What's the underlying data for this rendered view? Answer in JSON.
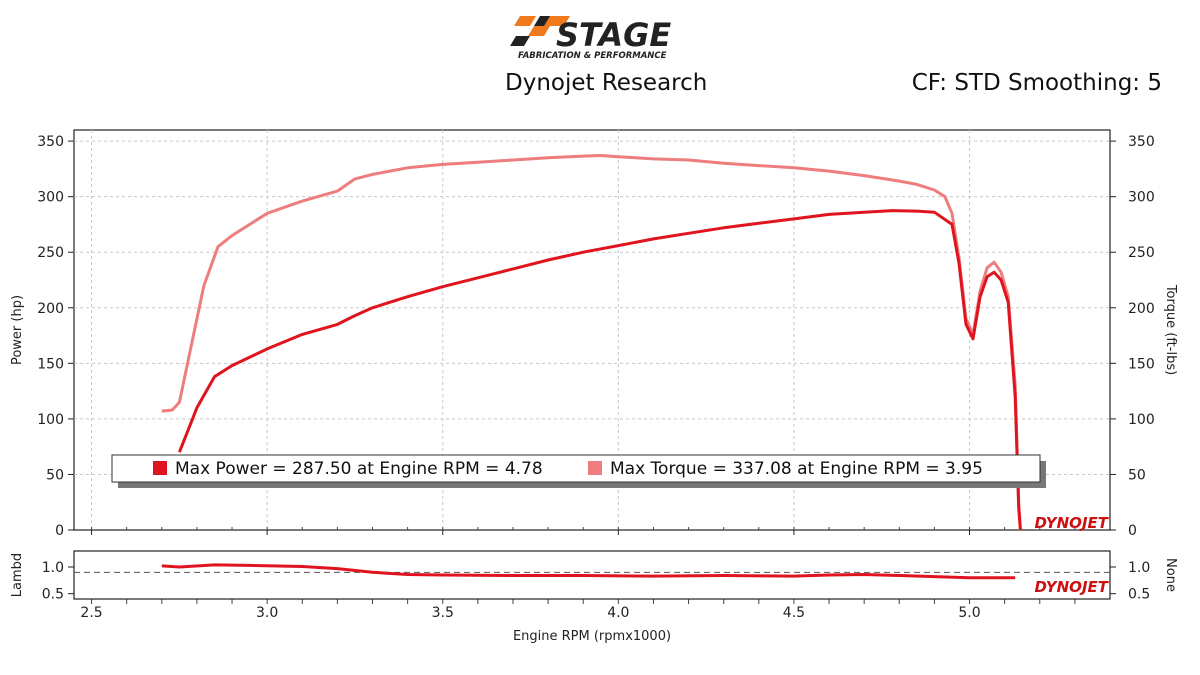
{
  "logo": {
    "brand": "STAGE",
    "tagline": "FABRICATION & PERFORMANCE",
    "accent": "#f07a1e"
  },
  "header": {
    "title": "Dynojet Research",
    "settings": "CF: STD Smoothing: 5"
  },
  "watermark": "DYNOJET",
  "colors": {
    "power": "#e0141e",
    "torque": "#ee7d7d",
    "lambda": "#e0141e"
  },
  "chart_data": {
    "type": "line",
    "xlabel": "Engine RPM (rpmx1000)",
    "ylabel": "Power (hp)",
    "y2label": "Torque (ft-lbs)",
    "xlim": [
      2.45,
      5.4
    ],
    "ylim": [
      0,
      360
    ],
    "x_ticks": [
      "2.5",
      "3.0",
      "3.5",
      "4.0",
      "4.5",
      "5.0"
    ],
    "y_ticks": [
      "0",
      "50",
      "100",
      "150",
      "200",
      "250",
      "300",
      "350"
    ],
    "y2_ticks": [
      "0",
      "50",
      "100",
      "150",
      "200",
      "250",
      "300",
      "350"
    ],
    "grid": true,
    "series": [
      {
        "name": "Max Power",
        "points": [
          [
            2.75,
            70
          ],
          [
            2.8,
            110
          ],
          [
            2.85,
            138
          ],
          [
            2.9,
            148
          ],
          [
            3.0,
            163
          ],
          [
            3.1,
            176
          ],
          [
            3.2,
            185
          ],
          [
            3.25,
            193
          ],
          [
            3.3,
            200
          ],
          [
            3.4,
            210
          ],
          [
            3.5,
            219
          ],
          [
            3.6,
            227
          ],
          [
            3.7,
            235
          ],
          [
            3.8,
            243
          ],
          [
            3.9,
            250
          ],
          [
            4.0,
            256
          ],
          [
            4.1,
            262
          ],
          [
            4.2,
            267
          ],
          [
            4.3,
            272
          ],
          [
            4.4,
            276
          ],
          [
            4.5,
            280
          ],
          [
            4.6,
            284
          ],
          [
            4.7,
            286
          ],
          [
            4.78,
            287.5
          ],
          [
            4.85,
            287
          ],
          [
            4.9,
            286
          ],
          [
            4.95,
            275
          ],
          [
            4.97,
            240
          ],
          [
            4.99,
            185
          ],
          [
            5.01,
            172
          ],
          [
            5.03,
            210
          ],
          [
            5.05,
            228
          ],
          [
            5.07,
            232
          ],
          [
            5.09,
            225
          ],
          [
            5.11,
            205
          ],
          [
            5.13,
            120
          ],
          [
            5.14,
            20
          ],
          [
            5.145,
            0
          ]
        ]
      },
      {
        "name": "Max Torque",
        "points": [
          [
            2.7,
            107
          ],
          [
            2.73,
            108
          ],
          [
            2.75,
            115
          ],
          [
            2.78,
            160
          ],
          [
            2.82,
            220
          ],
          [
            2.86,
            255
          ],
          [
            2.9,
            265
          ],
          [
            3.0,
            285
          ],
          [
            3.1,
            296
          ],
          [
            3.2,
            305
          ],
          [
            3.25,
            316
          ],
          [
            3.3,
            320
          ],
          [
            3.4,
            326
          ],
          [
            3.5,
            329
          ],
          [
            3.6,
            331
          ],
          [
            3.7,
            333
          ],
          [
            3.8,
            335
          ],
          [
            3.9,
            336.5
          ],
          [
            3.95,
            337.08
          ],
          [
            4.0,
            336
          ],
          [
            4.1,
            334
          ],
          [
            4.2,
            333
          ],
          [
            4.3,
            330
          ],
          [
            4.4,
            328
          ],
          [
            4.5,
            326
          ],
          [
            4.6,
            323
          ],
          [
            4.7,
            319
          ],
          [
            4.8,
            314
          ],
          [
            4.85,
            311
          ],
          [
            4.9,
            306
          ],
          [
            4.93,
            300
          ],
          [
            4.95,
            285
          ],
          [
            4.97,
            245
          ],
          [
            4.99,
            190
          ],
          [
            5.01,
            176
          ],
          [
            5.03,
            215
          ],
          [
            5.05,
            236
          ],
          [
            5.07,
            241
          ],
          [
            5.09,
            232
          ],
          [
            5.11,
            210
          ],
          [
            5.13,
            130
          ],
          [
            5.14,
            25
          ],
          [
            5.145,
            0
          ]
        ]
      }
    ],
    "legend": [
      {
        "label": "Max Power = 287.50 at Engine RPM = 4.78"
      },
      {
        "label": "Max Torque = 337.08 at Engine RPM = 3.95"
      }
    ],
    "sub_chart": {
      "ylabel": "Lambd",
      "y2label": "None",
      "ylim": [
        0.4,
        1.3
      ],
      "y_ticks": [
        "0.5",
        "1.0"
      ],
      "y2_ticks": [
        "0.5",
        "1.0"
      ],
      "reference_line": 0.9,
      "points": [
        [
          2.7,
          1.02
        ],
        [
          2.75,
          1.0
        ],
        [
          2.85,
          1.04
        ],
        [
          2.95,
          1.03
        ],
        [
          3.1,
          1.01
        ],
        [
          3.2,
          0.97
        ],
        [
          3.3,
          0.9
        ],
        [
          3.4,
          0.86
        ],
        [
          3.5,
          0.85
        ],
        [
          3.7,
          0.84
        ],
        [
          3.9,
          0.84
        ],
        [
          4.1,
          0.83
        ],
        [
          4.3,
          0.84
        ],
        [
          4.5,
          0.83
        ],
        [
          4.6,
          0.85
        ],
        [
          4.7,
          0.86
        ],
        [
          4.8,
          0.84
        ],
        [
          4.9,
          0.82
        ],
        [
          5.0,
          0.8
        ],
        [
          5.13,
          0.8
        ]
      ]
    }
  }
}
